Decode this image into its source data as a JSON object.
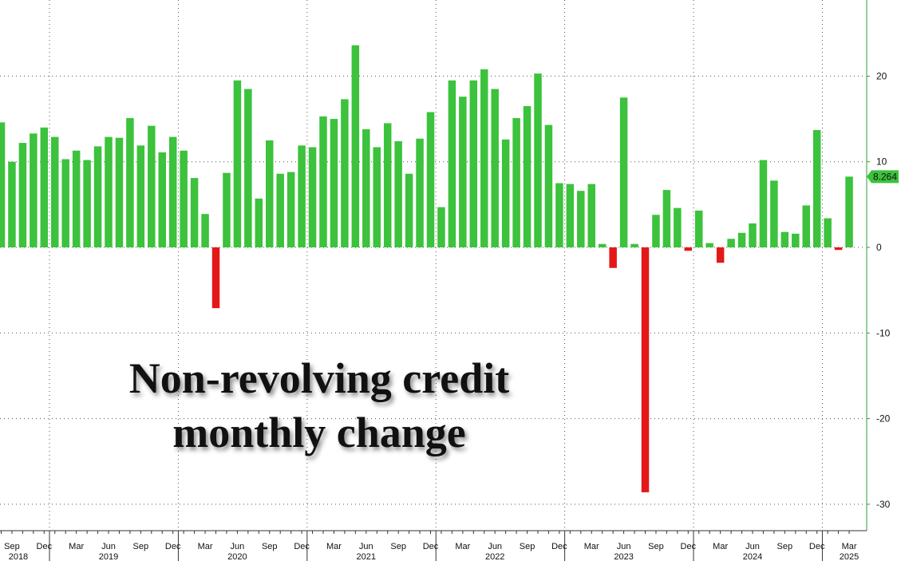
{
  "chart_data": {
    "type": "bar",
    "title": [
      "Non-revolving credit",
      "monthly change"
    ],
    "ylim": [
      -32,
      28.5
    ],
    "yticks": [
      -30,
      -20,
      -10,
      0,
      10,
      20
    ],
    "last_value_label": "8.264",
    "colors": {
      "positive": "#3cc23c",
      "negative": "#e31919",
      "axis": "#2e9d2e",
      "badge": "#3cc23c"
    },
    "grid": true,
    "categories": [
      "2018-08",
      "2018-09",
      "2018-10",
      "2018-11",
      "2018-12",
      "2019-01",
      "2019-02",
      "2019-03",
      "2019-04",
      "2019-05",
      "2019-06",
      "2019-07",
      "2019-08",
      "2019-09",
      "2019-10",
      "2019-11",
      "2019-12",
      "2020-01",
      "2020-02",
      "2020-03",
      "2020-04",
      "2020-05",
      "2020-06",
      "2020-07",
      "2020-08",
      "2020-09",
      "2020-10",
      "2020-11",
      "2020-12",
      "2021-01",
      "2021-02",
      "2021-03",
      "2021-04",
      "2021-05",
      "2021-06",
      "2021-07",
      "2021-08",
      "2021-09",
      "2021-10",
      "2021-11",
      "2021-12",
      "2022-01",
      "2022-02",
      "2022-03",
      "2022-04",
      "2022-05",
      "2022-06",
      "2022-07",
      "2022-08",
      "2022-09",
      "2022-10",
      "2022-11",
      "2022-12",
      "2023-01",
      "2023-02",
      "2023-03",
      "2023-04",
      "2023-05",
      "2023-06",
      "2023-07",
      "2023-08",
      "2023-09",
      "2023-10",
      "2023-11",
      "2023-12",
      "2024-01",
      "2024-02",
      "2024-03",
      "2024-04",
      "2024-05",
      "2024-06",
      "2024-07",
      "2024-08",
      "2024-09",
      "2024-10",
      "2024-11",
      "2024-12",
      "2025-01",
      "2025-02",
      "2025-03"
    ],
    "values": [
      14.6,
      10.0,
      12.2,
      13.3,
      14.0,
      12.9,
      10.3,
      11.3,
      10.2,
      11.8,
      12.9,
      12.8,
      15.1,
      11.9,
      14.2,
      11.1,
      12.9,
      11.3,
      8.1,
      3.9,
      -7.1,
      8.7,
      19.5,
      18.5,
      5.7,
      12.5,
      8.6,
      8.8,
      11.9,
      11.7,
      15.3,
      15.0,
      17.3,
      23.6,
      13.8,
      11.7,
      14.5,
      12.4,
      8.6,
      12.7,
      15.8,
      4.7,
      19.5,
      17.6,
      19.5,
      20.8,
      18.5,
      12.6,
      15.1,
      16.5,
      20.3,
      14.3,
      7.5,
      7.4,
      6.6,
      7.4,
      0.4,
      -2.4,
      17.5,
      0.4,
      -28.6,
      3.8,
      6.7,
      4.6,
      -0.4,
      4.3,
      0.5,
      -1.8,
      1.0,
      1.7,
      2.8,
      10.2,
      7.8,
      1.8,
      1.6,
      4.9,
      13.7,
      3.4,
      -0.3,
      8.264
    ],
    "x_month_labels": [
      {
        "idx": 1,
        "label": "Sep"
      },
      {
        "idx": 4,
        "label": "Dec"
      },
      {
        "idx": 7,
        "label": "Mar"
      },
      {
        "idx": 10,
        "label": "Jun"
      },
      {
        "idx": 13,
        "label": "Sep"
      },
      {
        "idx": 16,
        "label": "Dec"
      },
      {
        "idx": 19,
        "label": "Mar"
      },
      {
        "idx": 22,
        "label": "Jun"
      },
      {
        "idx": 25,
        "label": "Sep"
      },
      {
        "idx": 28,
        "label": "Dec"
      },
      {
        "idx": 31,
        "label": "Mar"
      },
      {
        "idx": 34,
        "label": "Jun"
      },
      {
        "idx": 37,
        "label": "Sep"
      },
      {
        "idx": 40,
        "label": "Dec"
      },
      {
        "idx": 43,
        "label": "Mar"
      },
      {
        "idx": 46,
        "label": "Jun"
      },
      {
        "idx": 49,
        "label": "Sep"
      },
      {
        "idx": 52,
        "label": "Dec"
      },
      {
        "idx": 55,
        "label": "Mar"
      },
      {
        "idx": 58,
        "label": "Jun"
      },
      {
        "idx": 61,
        "label": "Sep"
      },
      {
        "idx": 64,
        "label": "Dec"
      },
      {
        "idx": 67,
        "label": "Mar"
      },
      {
        "idx": 70,
        "label": "Jun"
      },
      {
        "idx": 73,
        "label": "Sep"
      },
      {
        "idx": 76,
        "label": "Dec"
      },
      {
        "idx": 79,
        "label": "Mar"
      }
    ],
    "x_year_labels": [
      {
        "idx": 1,
        "label": "2018"
      },
      {
        "idx": 10,
        "label": "2019"
      },
      {
        "idx": 22,
        "label": "2020"
      },
      {
        "idx": 34,
        "label": "2021"
      },
      {
        "idx": 46,
        "label": "2022"
      },
      {
        "idx": 58,
        "label": "2023"
      },
      {
        "idx": 70,
        "label": "2024"
      },
      {
        "idx": 79,
        "label": "2025"
      }
    ],
    "year_boundaries": [
      4.5,
      16.5,
      28.5,
      40.5,
      52.5,
      64.5,
      76.5
    ]
  }
}
